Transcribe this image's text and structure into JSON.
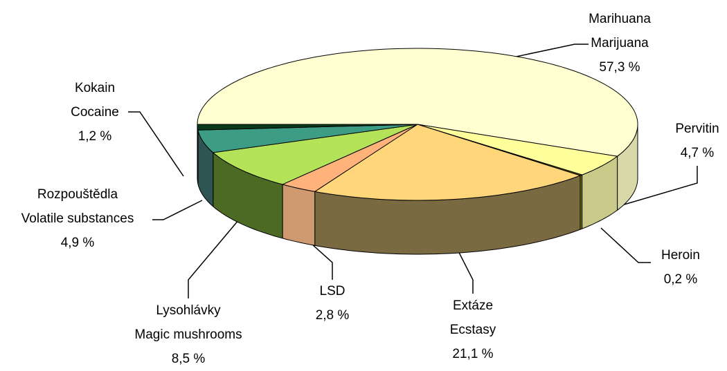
{
  "chart_data": {
    "type": "pie3d",
    "categories": [
      [
        "Marihuana",
        "Marijuana"
      ],
      [
        "Pervitin"
      ],
      [
        "Heroin"
      ],
      [
        "Extáze",
        "Ecstasy"
      ],
      [
        "LSD"
      ],
      [
        "Lysohlávky",
        "Magic mushrooms"
      ],
      [
        "Rozpouštědla",
        "Volatile substances"
      ],
      [
        "Kokain",
        "Cocaine"
      ]
    ],
    "values": [
      57.3,
      4.7,
      0.2,
      21.1,
      2.8,
      8.5,
      4.9,
      1.2
    ],
    "value_labels": [
      "57,3 %",
      "4,7 %",
      "0,2 %",
      "21,1 %",
      "2,8 %",
      "8,5 %",
      "4,9 %",
      "1,2 %"
    ],
    "colors": [
      "#ffffd2",
      "#ffff9c",
      "#8a8a00",
      "#ffd77a",
      "#ffb27a",
      "#b4e35a",
      "#3c9c84",
      "#0a3a1a"
    ],
    "side_colors": [
      "#d8d8a8",
      "#c9c98a",
      "#7a7a00",
      "#7a6a42",
      "#d09a70",
      "#4c6a24",
      "#2e5454",
      "#00250c"
    ]
  }
}
